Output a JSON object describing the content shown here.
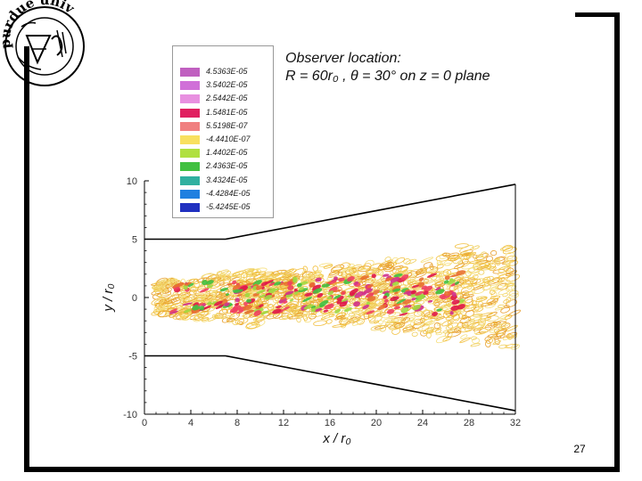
{
  "slide": {
    "page_number": "27",
    "logo_text": "purdue univ"
  },
  "annotation": {
    "line1": "Observer location:",
    "line2": "R = 60r₀ , θ = 30° on z = 0 plane"
  },
  "legend": {
    "entries": [
      {
        "label": "4.5363E-05",
        "color": "#c060c0"
      },
      {
        "label": "3.5402E-05",
        "color": "#d070d8"
      },
      {
        "label": "2.5442E-05",
        "color": "#e890e0"
      },
      {
        "label": "1.5481E-05",
        "color": "#e02060"
      },
      {
        "label": "5.5198E-07",
        "color": "#f08080"
      },
      {
        "label": "-4.4410E-07",
        "color": "#f8e060"
      },
      {
        "label": "1.4402E-05",
        "color": "#b0e040"
      },
      {
        "label": "2.4363E-05",
        "color": "#40c040"
      },
      {
        "label": "3.4324E-05",
        "color": "#30b0a0"
      },
      {
        "label": "-4.4284E-05",
        "color": "#2080e0"
      },
      {
        "label": "-5.4245E-05",
        "color": "#2030c0"
      }
    ]
  },
  "chart_data": {
    "type": "contour",
    "xlabel": "x / r₀",
    "ylabel": "y / r₀",
    "xlim": [
      0,
      32
    ],
    "ylim": [
      -10,
      10
    ],
    "x_ticks": [
      "0",
      "4",
      "8",
      "12",
      "16",
      "20",
      "24",
      "28",
      "32"
    ],
    "y_ticks": [
      "10",
      "5",
      "0",
      "-5",
      "-10"
    ],
    "upper_boundary": [
      [
        0,
        5
      ],
      [
        7,
        5
      ],
      [
        32,
        9.7
      ]
    ],
    "lower_boundary": [
      [
        0,
        -5
      ],
      [
        7,
        -5
      ],
      [
        32,
        -9.7
      ]
    ]
  }
}
